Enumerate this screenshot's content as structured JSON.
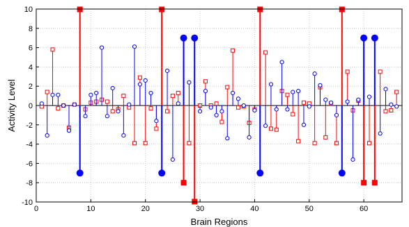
{
  "chart_data": {
    "type": "scatter",
    "title": "",
    "xlabel": "Brain Regions",
    "ylabel": "Activity Level",
    "xlim": [
      0,
      67
    ],
    "ylim": [
      -10,
      10
    ],
    "xticks": [
      0,
      10,
      20,
      30,
      40,
      50,
      60
    ],
    "yticks": [
      -10,
      -8,
      -6,
      -4,
      -2,
      0,
      2,
      4,
      6,
      8,
      10
    ],
    "grid": true,
    "legend": false,
    "series": [
      {
        "color": "#0000ff",
        "marker": "circle",
        "points": [
          [
            1,
            0.2
          ],
          [
            2,
            -3.1
          ],
          [
            3,
            1.1
          ],
          [
            4,
            1.1
          ],
          [
            5,
            0.0
          ],
          [
            6,
            -2.6
          ],
          [
            7,
            0.1
          ],
          [
            8,
            -7.0
          ],
          [
            9,
            -1.1
          ],
          [
            10,
            1.1
          ],
          [
            11,
            1.3
          ],
          [
            12,
            6.0
          ],
          [
            13,
            -1.1
          ],
          [
            14,
            1.8
          ],
          [
            15,
            -0.6
          ],
          [
            16,
            -3.1
          ],
          [
            17,
            0.1
          ],
          [
            18,
            6.1
          ],
          [
            19,
            2.2
          ],
          [
            20,
            2.6
          ],
          [
            21,
            1.3
          ],
          [
            22,
            -1.6
          ],
          [
            23,
            -7.0
          ],
          [
            24,
            3.6
          ],
          [
            25,
            -5.6
          ],
          [
            26,
            0.2
          ],
          [
            27,
            7.0
          ],
          [
            28,
            2.4
          ],
          [
            29,
            7.0
          ],
          [
            30,
            -0.6
          ],
          [
            31,
            1.5
          ],
          [
            32,
            -0.2
          ],
          [
            33,
            -1.0
          ],
          [
            34,
            -0.6
          ],
          [
            35,
            -3.4
          ],
          [
            36,
            1.3
          ],
          [
            37,
            0.7
          ],
          [
            38,
            0.0
          ],
          [
            39,
            -3.3
          ],
          [
            40,
            -0.5
          ],
          [
            41,
            -7.0
          ],
          [
            42,
            -2.1
          ],
          [
            43,
            2.2
          ],
          [
            44,
            -0.4
          ],
          [
            45,
            4.5
          ],
          [
            46,
            -0.4
          ],
          [
            47,
            1.4
          ],
          [
            48,
            1.5
          ],
          [
            49,
            -2.0
          ],
          [
            50,
            -0.1
          ],
          [
            51,
            3.3
          ],
          [
            52,
            2.1
          ],
          [
            53,
            0.6
          ],
          [
            54,
            0.3
          ],
          [
            55,
            -1.0
          ],
          [
            56,
            -7.0
          ],
          [
            57,
            0.4
          ],
          [
            58,
            -5.6
          ],
          [
            59,
            0.6
          ],
          [
            60,
            7.0
          ],
          [
            61,
            0.9
          ],
          [
            62,
            7.0
          ],
          [
            63,
            -2.9
          ],
          [
            64,
            1.7
          ],
          [
            65,
            0.1
          ],
          [
            66,
            -0.1
          ]
        ]
      },
      {
        "color": "#ff0000",
        "marker": "square",
        "points": [
          [
            1,
            -0.1
          ],
          [
            2,
            1.4
          ],
          [
            3,
            5.8
          ],
          [
            4,
            -0.3
          ],
          [
            5,
            0.0
          ],
          [
            6,
            -2.3
          ],
          [
            7,
            0.1
          ],
          [
            8,
            10.0
          ],
          [
            9,
            -0.4
          ],
          [
            10,
            0.3
          ],
          [
            11,
            0.4
          ],
          [
            12,
            0.6
          ],
          [
            13,
            0.4
          ],
          [
            14,
            -0.6
          ],
          [
            15,
            -0.4
          ],
          [
            16,
            1.0
          ],
          [
            17,
            -0.2
          ],
          [
            18,
            -3.9
          ],
          [
            19,
            2.9
          ],
          [
            20,
            -3.9
          ],
          [
            21,
            -0.3
          ],
          [
            22,
            -2.4
          ],
          [
            23,
            10.0
          ],
          [
            24,
            -0.6
          ],
          [
            25,
            1.0
          ],
          [
            26,
            1.3
          ],
          [
            27,
            -8.0
          ],
          [
            28,
            -3.9
          ],
          [
            29,
            -10.0
          ],
          [
            30,
            0.0
          ],
          [
            31,
            2.5
          ],
          [
            32,
            0.0
          ],
          [
            33,
            0.2
          ],
          [
            34,
            -1.7
          ],
          [
            35,
            1.9
          ],
          [
            36,
            5.7
          ],
          [
            37,
            -0.2
          ],
          [
            38,
            -0.1
          ],
          [
            39,
            -1.8
          ],
          [
            40,
            -0.4
          ],
          [
            41,
            10.0
          ],
          [
            42,
            5.5
          ],
          [
            43,
            -2.4
          ],
          [
            44,
            -2.5
          ],
          [
            45,
            1.5
          ],
          [
            46,
            1.1
          ],
          [
            47,
            -0.9
          ],
          [
            48,
            -3.7
          ],
          [
            49,
            0.3
          ],
          [
            50,
            0.2
          ],
          [
            51,
            -3.9
          ],
          [
            52,
            1.9
          ],
          [
            53,
            -3.3
          ],
          [
            54,
            0.2
          ],
          [
            55,
            -3.9
          ],
          [
            56,
            10.0
          ],
          [
            57,
            3.5
          ],
          [
            58,
            -0.5
          ],
          [
            59,
            0.5
          ],
          [
            60,
            -8.0
          ],
          [
            61,
            -3.9
          ],
          [
            62,
            -8.0
          ],
          [
            63,
            3.5
          ],
          [
            64,
            -0.6
          ],
          [
            65,
            -0.5
          ],
          [
            66,
            1.4
          ]
        ]
      }
    ]
  }
}
